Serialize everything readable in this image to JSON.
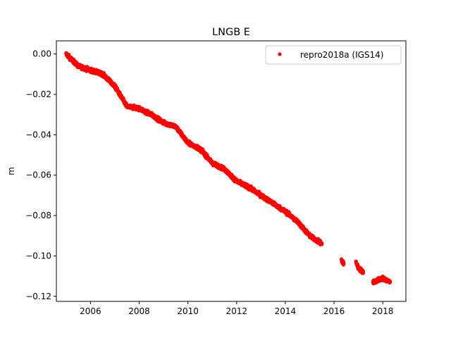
{
  "chart_data": {
    "type": "scatter",
    "title": "LNGB E",
    "xlabel": "",
    "ylabel": "m",
    "xlim": [
      2004.6,
      2018.95
    ],
    "ylim": [
      -0.1225,
      0.0065
    ],
    "x_ticks": [
      2006,
      2008,
      2010,
      2012,
      2014,
      2016,
      2018
    ],
    "x_tick_labels": [
      "2006",
      "2008",
      "2010",
      "2012",
      "2014",
      "2016",
      "2018"
    ],
    "y_ticks": [
      0.0,
      -0.02,
      -0.04,
      -0.06,
      -0.08,
      -0.1,
      -0.12
    ],
    "y_tick_labels": [
      "0.00",
      "−0.02",
      "−0.04",
      "−0.06",
      "−0.08",
      "−0.10",
      "−0.12"
    ],
    "grid": false,
    "legend_position": "top-right",
    "series": [
      {
        "name": "repro2018a (IGS14)",
        "color": "#ff0000",
        "marker": "circle",
        "segments": [
          {
            "x": [
              2005.0,
              2005.5,
              2006.0,
              2006.5,
              2007.0,
              2007.5,
              2008.0,
              2008.5,
              2009.0,
              2009.5,
              2010.0,
              2010.5,
              2011.0,
              2011.5,
              2012.0,
              2012.5,
              2013.0,
              2013.5,
              2014.0,
              2014.5,
              2015.0,
              2015.5
            ],
            "y": [
              0.0,
              -0.006,
              -0.008,
              -0.01,
              -0.016,
              -0.026,
              -0.027,
              -0.03,
              -0.034,
              -0.036,
              -0.044,
              -0.047,
              -0.054,
              -0.057,
              -0.063,
              -0.066,
              -0.07,
              -0.074,
              -0.078,
              -0.083,
              -0.09,
              -0.094
            ]
          },
          {
            "x": [
              2016.3,
              2016.4
            ],
            "y": [
              -0.102,
              -0.104
            ]
          },
          {
            "x": [
              2016.9,
              2017.0,
              2017.2
            ],
            "y": [
              -0.103,
              -0.106,
              -0.108
            ]
          },
          {
            "x": [
              2017.6,
              2017.8,
              2018.0,
              2018.3
            ],
            "y": [
              -0.113,
              -0.112,
              -0.111,
              -0.113
            ]
          }
        ]
      }
    ]
  }
}
